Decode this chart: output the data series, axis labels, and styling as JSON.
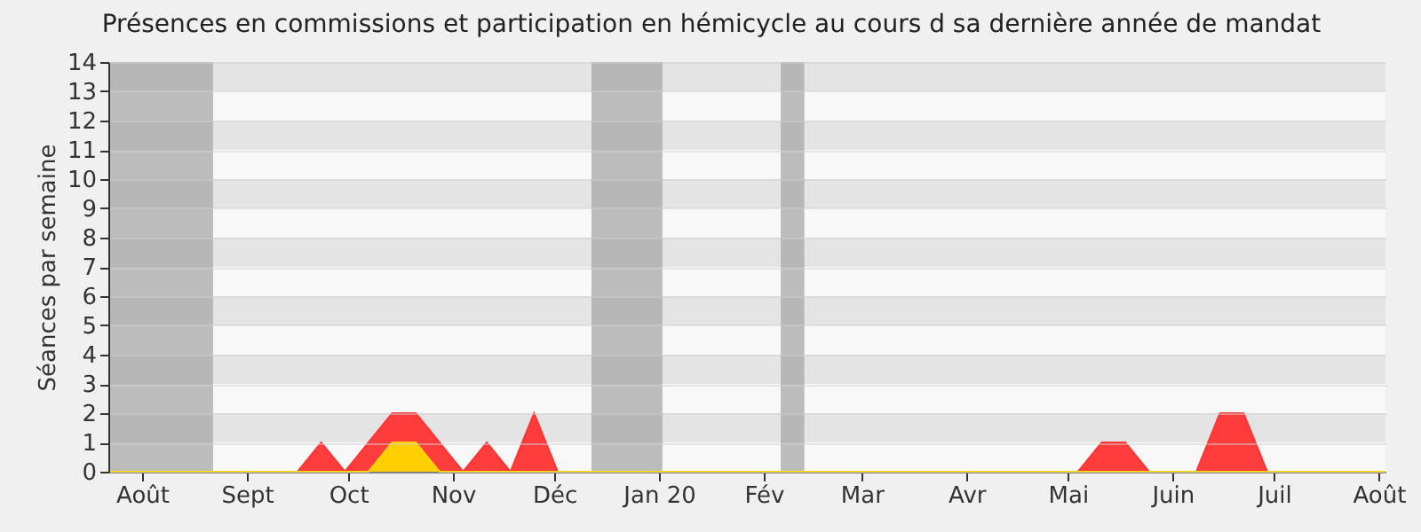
{
  "chart_data": {
    "type": "area",
    "title": "Présences en commissions et participation en hémicycle au cours d sa dernière année de mandat",
    "ylabel": "Séances par semaine",
    "x": [
      "2019-07-22",
      "2019-07-29",
      "2019-08-05",
      "2019-08-12",
      "2019-08-19",
      "2019-08-26",
      "2019-09-02",
      "2019-09-09",
      "2019-09-16",
      "2019-09-23",
      "2019-09-30",
      "2019-10-07",
      "2019-10-14",
      "2019-10-21",
      "2019-10-28",
      "2019-11-04",
      "2019-11-11",
      "2019-11-18",
      "2019-11-25",
      "2019-12-02",
      "2019-12-09",
      "2019-12-16",
      "2019-12-23",
      "2019-12-30",
      "2020-01-06",
      "2020-01-13",
      "2020-01-20",
      "2020-01-27",
      "2020-02-03",
      "2020-02-10",
      "2020-02-17",
      "2020-02-24",
      "2020-03-02",
      "2020-03-09",
      "2020-03-16",
      "2020-03-23",
      "2020-03-30",
      "2020-04-06",
      "2020-04-13",
      "2020-04-20",
      "2020-04-27",
      "2020-05-04",
      "2020-05-11",
      "2020-05-18",
      "2020-05-25",
      "2020-06-01",
      "2020-06-08",
      "2020-06-15",
      "2020-06-22",
      "2020-06-29",
      "2020-07-06",
      "2020-07-13",
      "2020-07-20",
      "2020-07-27",
      "2020-08-03"
    ],
    "series": [
      {
        "color": "#ff3333",
        "values": [
          0,
          0,
          0,
          0,
          0,
          0,
          0,
          0,
          0,
          1,
          0,
          1,
          2,
          2,
          1,
          0,
          1,
          0,
          2,
          0,
          0,
          0,
          0,
          0,
          0,
          0,
          0,
          0,
          0,
          0,
          0,
          0,
          0,
          0,
          0,
          0,
          0,
          0,
          0,
          0,
          0,
          0,
          1,
          1,
          0,
          0,
          0,
          2,
          2,
          0,
          0,
          0,
          0,
          0,
          0
        ]
      },
      {
        "color": "#ffd700",
        "values": [
          0,
          0,
          0,
          0,
          0,
          0,
          0,
          0,
          0,
          0,
          0,
          0,
          1,
          1,
          0,
          0,
          0,
          0,
          0,
          0,
          0,
          0,
          0,
          0,
          0,
          0,
          0,
          0,
          0,
          0,
          0,
          0,
          0,
          0,
          0,
          0,
          0,
          0,
          0,
          0,
          0,
          0,
          0,
          0,
          0,
          0,
          0,
          0,
          0,
          0,
          0,
          0,
          0,
          0,
          0
        ]
      }
    ],
    "xlim": [
      "2019-07-22",
      "2020-08-03"
    ],
    "xticks": [
      {
        "value": "2019-08-01",
        "label": "Août"
      },
      {
        "value": "2019-09-01",
        "label": "Sept"
      },
      {
        "value": "2019-10-01",
        "label": "Oct"
      },
      {
        "value": "2019-11-01",
        "label": "Nov"
      },
      {
        "value": "2019-12-01",
        "label": "Déc"
      },
      {
        "value": "2020-01-01",
        "label": "Jan 20"
      },
      {
        "value": "2020-02-01",
        "label": "Fév"
      },
      {
        "value": "2020-03-01",
        "label": "Mar"
      },
      {
        "value": "2020-04-01",
        "label": "Avr"
      },
      {
        "value": "2020-05-01",
        "label": "Mai"
      },
      {
        "value": "2020-06-01",
        "label": "Juin"
      },
      {
        "value": "2020-07-01",
        "label": "Juil"
      },
      {
        "value": "2020-08-01",
        "label": "Août"
      }
    ],
    "ylim": [
      0,
      14
    ],
    "yticks": [
      0,
      1,
      2,
      3,
      4,
      5,
      6,
      7,
      8,
      9,
      10,
      11,
      12,
      13,
      14
    ],
    "grid": "y",
    "bands": [
      {
        "axis": "x",
        "from": "2019-07-22",
        "to": "2019-08-22",
        "color": "#a8a8a8"
      },
      {
        "axis": "x",
        "from": "2019-12-12",
        "to": "2020-01-02",
        "color": "#a8a8a8"
      },
      {
        "axis": "x",
        "from": "2020-02-06",
        "to": "2020-02-13",
        "color": "#a8a8a8"
      }
    ]
  }
}
